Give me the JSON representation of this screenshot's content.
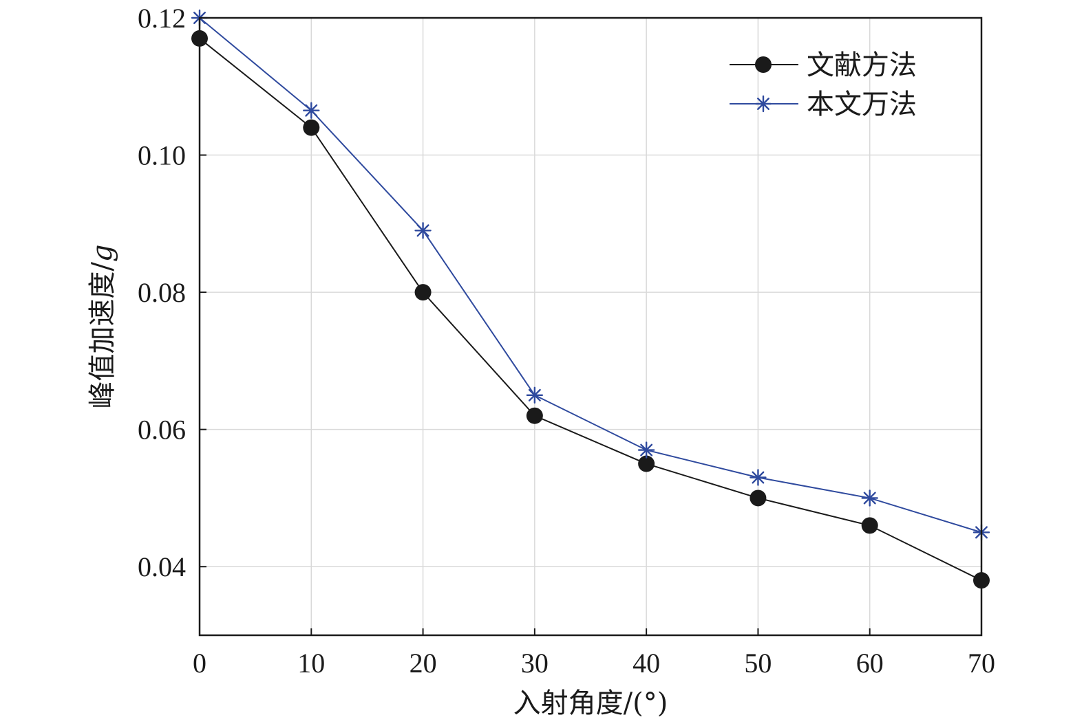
{
  "chart_data": {
    "type": "line",
    "title": "",
    "xlabel": "入射角度/(°)",
    "ylabel": "峰值加速度/",
    "ylabel_italic": "g",
    "x": [
      0,
      10,
      20,
      30,
      40,
      50,
      60,
      70
    ],
    "xlim": [
      0,
      70
    ],
    "ylim": [
      0.03,
      0.12
    ],
    "xticks": [
      0,
      10,
      20,
      30,
      40,
      50,
      60,
      70
    ],
    "xtick_labels": [
      "0",
      "10",
      "20",
      "30",
      "40",
      "50",
      "60",
      "70"
    ],
    "yticks": [
      0.04,
      0.06,
      0.08,
      0.1,
      0.12
    ],
    "ytick_labels": [
      "0.04",
      "0.06",
      "0.08",
      "0.10",
      "0.12"
    ],
    "grid": true,
    "legend_position": "top-right",
    "series": [
      {
        "name": "文献方法",
        "color": "#1a1a1a",
        "marker": "filled-circle",
        "values": [
          0.117,
          0.104,
          0.08,
          0.062,
          0.055,
          0.05,
          0.046,
          0.038
        ]
      },
      {
        "name": "本文万法",
        "color": "#2f4a9e",
        "marker": "asterisk",
        "values": [
          0.12,
          0.1065,
          0.089,
          0.065,
          0.057,
          0.053,
          0.05,
          0.045
        ]
      }
    ]
  }
}
